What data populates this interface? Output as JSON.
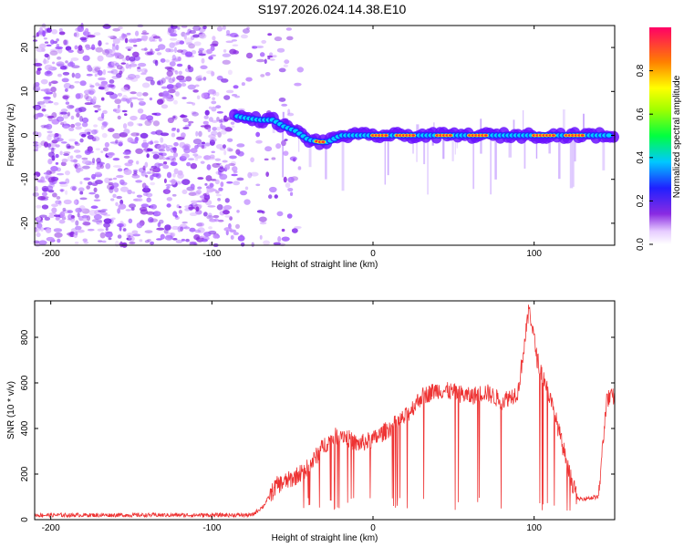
{
  "title": "S197.2026.024.14.38.E10",
  "chart_data": [
    {
      "type": "heatmap",
      "name": "spectrogram",
      "xlabel": "Height of straight line (km)",
      "ylabel": "Frequency (Hz)",
      "xlim": [
        -210,
        150
      ],
      "ylim": [
        -25,
        25
      ],
      "xticks": [
        -200,
        -100,
        0,
        100
      ],
      "yticks": [
        -20,
        -10,
        0,
        10,
        20
      ],
      "noise_region": [
        -210,
        -85
      ],
      "signal_track": [
        {
          "x": -86,
          "y": 4.5
        },
        {
          "x": -80,
          "y": 4
        },
        {
          "x": -70,
          "y": 3.5
        },
        {
          "x": -62,
          "y": 3.5
        },
        {
          "x": -55,
          "y": 2
        },
        {
          "x": -48,
          "y": 1
        },
        {
          "x": -40,
          "y": -1
        },
        {
          "x": -33,
          "y": -1.5
        },
        {
          "x": -28,
          "y": -1.5
        },
        {
          "x": -20,
          "y": 0
        },
        {
          "x": -10,
          "y": 0
        },
        {
          "x": 0,
          "y": 0
        },
        {
          "x": 20,
          "y": 0
        },
        {
          "x": 50,
          "y": 0
        },
        {
          "x": 80,
          "y": 0
        },
        {
          "x": 95,
          "y": 0
        },
        {
          "x": 105,
          "y": 0
        },
        {
          "x": 150,
          "y": 0
        }
      ],
      "colorbar": {
        "label": "Normalized spectral amplitude",
        "ticks": [
          0.0,
          0.2,
          0.4,
          0.6,
          0.8
        ],
        "range": [
          0,
          1
        ]
      }
    },
    {
      "type": "line",
      "name": "snr",
      "xlabel": "Height of straight line (km)",
      "ylabel": "SNR (10 * v/v)",
      "xlim": [
        -210,
        150
      ],
      "ylim": [
        0,
        960
      ],
      "xticks": [
        -200,
        -100,
        0,
        100
      ],
      "yticks": [
        0,
        200,
        400,
        600,
        800
      ],
      "color": "#ee3333",
      "key_points": [
        {
          "x": -210,
          "y": 20
        },
        {
          "x": -75,
          "y": 20
        },
        {
          "x": -68,
          "y": 60
        },
        {
          "x": -60,
          "y": 150
        },
        {
          "x": -50,
          "y": 180
        },
        {
          "x": -40,
          "y": 230
        },
        {
          "x": -30,
          "y": 330
        },
        {
          "x": -20,
          "y": 380
        },
        {
          "x": -10,
          "y": 330
        },
        {
          "x": 0,
          "y": 350
        },
        {
          "x": 10,
          "y": 400
        },
        {
          "x": 20,
          "y": 450
        },
        {
          "x": 30,
          "y": 540
        },
        {
          "x": 40,
          "y": 570
        },
        {
          "x": 50,
          "y": 560
        },
        {
          "x": 60,
          "y": 540
        },
        {
          "x": 70,
          "y": 560
        },
        {
          "x": 80,
          "y": 520
        },
        {
          "x": 90,
          "y": 560
        },
        {
          "x": 97,
          "y": 930
        },
        {
          "x": 102,
          "y": 700
        },
        {
          "x": 108,
          "y": 580
        },
        {
          "x": 115,
          "y": 400
        },
        {
          "x": 122,
          "y": 200
        },
        {
          "x": 127,
          "y": 90
        },
        {
          "x": 140,
          "y": 100
        },
        {
          "x": 145,
          "y": 530
        },
        {
          "x": 150,
          "y": 540
        }
      ]
    }
  ]
}
